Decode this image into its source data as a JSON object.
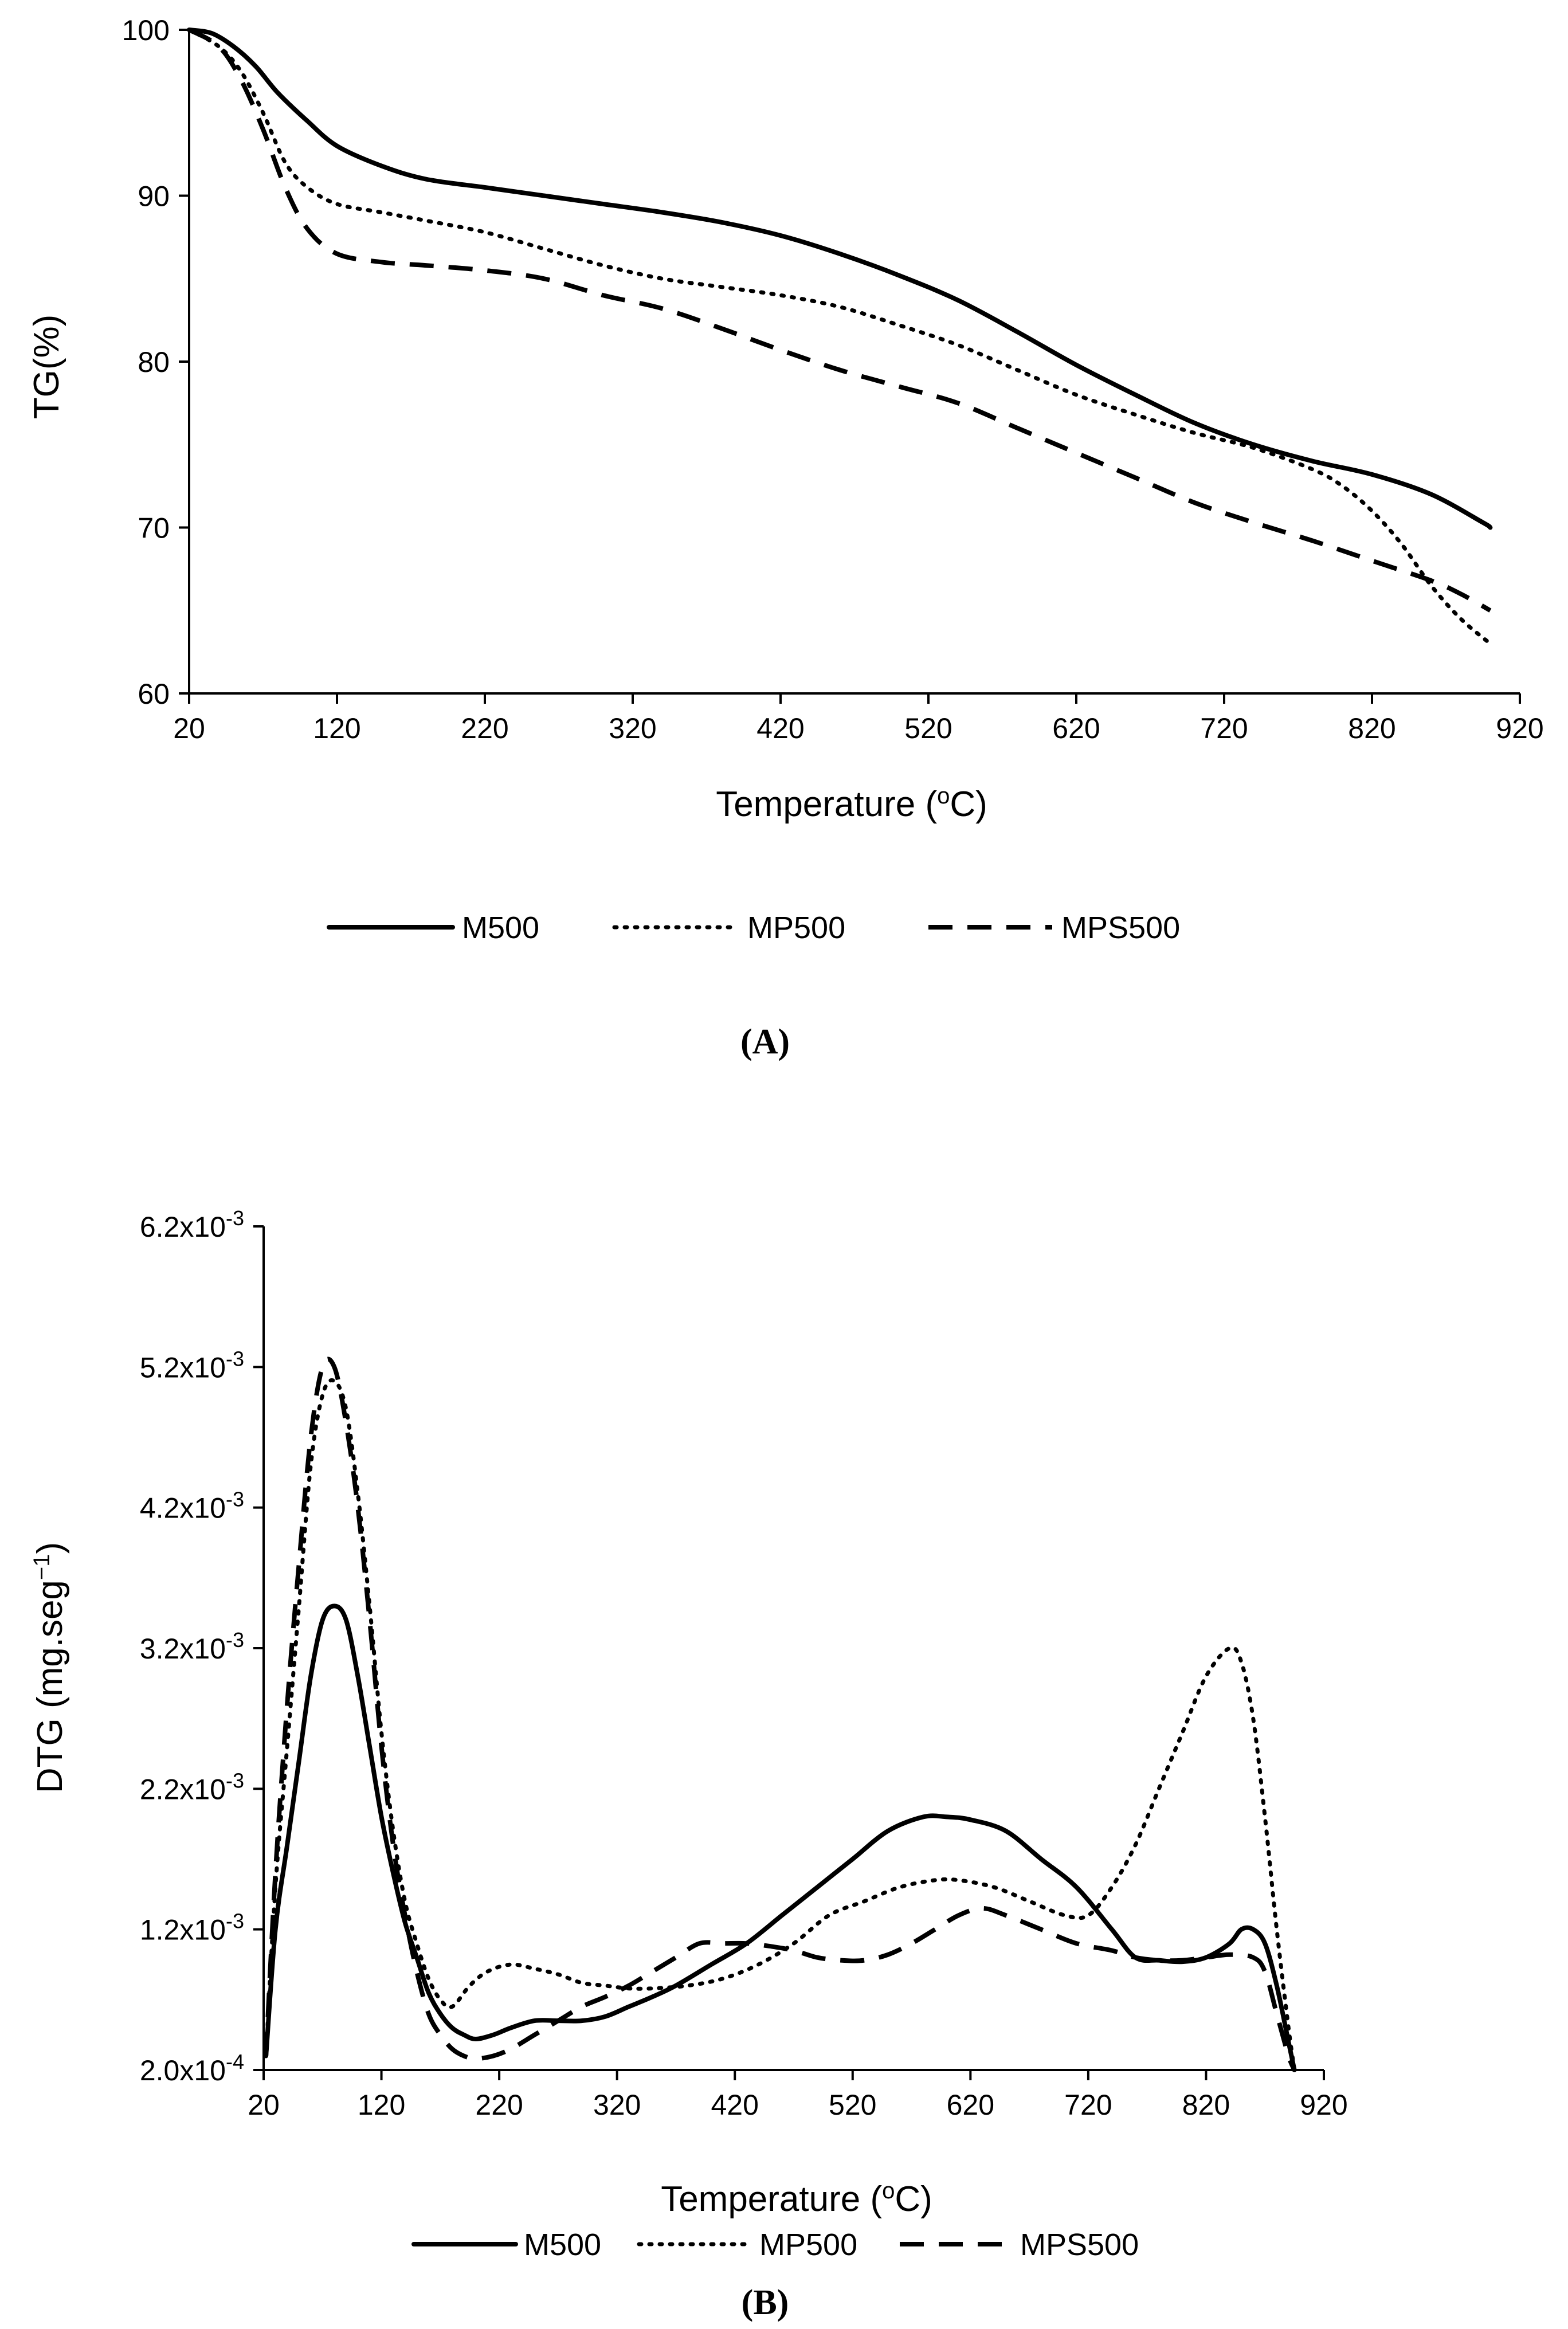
{
  "chart_data": [
    {
      "type": "line",
      "caption": "(A)",
      "title": "",
      "xlabel": "Temperature (",
      "xlabel_sup": "o",
      "xlabel_unit": "C)",
      "ylabel": "TG(%)",
      "xlim": [
        20,
        920
      ],
      "ylim": [
        60,
        100
      ],
      "xticks": [
        20,
        120,
        220,
        320,
        420,
        520,
        620,
        720,
        820,
        920
      ],
      "xtick_labels": [
        "20",
        "120",
        "220",
        "320",
        "420",
        "520",
        "620",
        "720",
        "820",
        "920"
      ],
      "yticks": [
        60,
        70,
        80,
        90,
        100
      ],
      "ytick_labels": [
        "60",
        "70",
        "80",
        "90",
        "100"
      ],
      "legend_position": "bottom",
      "series": [
        {
          "name": "M500",
          "style": "solid",
          "x": [
            20,
            35,
            50,
            65,
            80,
            100,
            120,
            150,
            180,
            220,
            260,
            300,
            340,
            380,
            420,
            460,
            500,
            540,
            580,
            620,
            660,
            700,
            740,
            780,
            820,
            860,
            895,
            900
          ],
          "y": [
            100,
            99.8,
            99.0,
            97.8,
            96.2,
            94.5,
            93.0,
            91.8,
            91.0,
            90.5,
            90.0,
            89.5,
            89.0,
            88.4,
            87.6,
            86.5,
            85.2,
            83.7,
            81.8,
            79.8,
            78.0,
            76.3,
            75.0,
            74.0,
            73.2,
            72.0,
            70.3,
            70.0
          ]
        },
        {
          "name": "MP500",
          "style": "dotted",
          "x": [
            20,
            40,
            55,
            70,
            85,
            100,
            120,
            150,
            180,
            220,
            260,
            300,
            340,
            380,
            420,
            460,
            500,
            540,
            580,
            620,
            660,
            700,
            740,
            780,
            800,
            820,
            840,
            860,
            880,
            900
          ],
          "y": [
            100,
            99.0,
            97.5,
            95.0,
            92.0,
            90.5,
            89.5,
            89.0,
            88.5,
            87.8,
            86.8,
            85.8,
            85.0,
            84.5,
            84.0,
            83.3,
            82.2,
            81.0,
            79.5,
            78.0,
            76.8,
            75.7,
            74.8,
            73.5,
            72.5,
            71.0,
            69.0,
            66.5,
            64.5,
            63.0
          ]
        },
        {
          "name": "MPS500",
          "style": "dashed",
          "x": [
            20,
            40,
            55,
            70,
            85,
            100,
            120,
            150,
            180,
            220,
            260,
            300,
            340,
            380,
            420,
            460,
            500,
            540,
            580,
            620,
            660,
            700,
            740,
            780,
            820,
            860,
            880,
            900
          ],
          "y": [
            100,
            99.0,
            97.0,
            94.0,
            90.5,
            88.0,
            86.5,
            86.0,
            85.8,
            85.5,
            85.0,
            84.0,
            83.2,
            82.0,
            80.7,
            79.5,
            78.5,
            77.5,
            76.0,
            74.5,
            73.0,
            71.5,
            70.3,
            69.2,
            68.0,
            66.8,
            66.0,
            65.0
          ]
        }
      ]
    },
    {
      "type": "line",
      "caption": "(B)",
      "title": "",
      "xlabel": "Temperature (",
      "xlabel_sup": "o",
      "xlabel_unit": "C)",
      "ylabel": "DTG (mg.seg",
      "ylabel_sup": "−1",
      "ylabel_unit": ")",
      "xlim": [
        20,
        920
      ],
      "ylim": [
        0.0002,
        0.0062
      ],
      "xticks": [
        20,
        120,
        220,
        320,
        420,
        520,
        620,
        720,
        820,
        920
      ],
      "xtick_labels": [
        "20",
        "120",
        "220",
        "320",
        "420",
        "520",
        "620",
        "720",
        "820",
        "920"
      ],
      "yticks": [
        0.0002,
        0.0012,
        0.0022,
        0.0032,
        0.0042,
        0.0052,
        0.0062
      ],
      "ytick_labels": [
        "2.0x10",
        "1.2x10",
        "2.2x10",
        "3.2x10",
        "4.2x10",
        "5.2x10",
        "6.2x10"
      ],
      "ytick_exponents": [
        "-4",
        "-3",
        "-3",
        "-3",
        "-3",
        "-3",
        "-3"
      ],
      "legend_position": "bottom",
      "series": [
        {
          "name": "M500",
          "style": "solid",
          "x": [
            22,
            30,
            40,
            50,
            60,
            70,
            80,
            90,
            100,
            110,
            120,
            130,
            140,
            150,
            160,
            170,
            180,
            190,
            200,
            215,
            230,
            250,
            270,
            290,
            310,
            330,
            350,
            370,
            400,
            430,
            460,
            490,
            520,
            550,
            580,
            600,
            620,
            650,
            680,
            710,
            740,
            760,
            780,
            800,
            820,
            840,
            850,
            860,
            870,
            880,
            890,
            895
          ],
          "y": [
            0.0003,
            0.0012,
            0.0018,
            0.0024,
            0.003,
            0.0034,
            0.0035,
            0.0034,
            0.003,
            0.0025,
            0.002,
            0.0016,
            0.00125,
            0.001,
            0.00075,
            0.0006,
            0.0005,
            0.00045,
            0.00042,
            0.00045,
            0.0005,
            0.00055,
            0.00055,
            0.00055,
            0.00058,
            0.00065,
            0.00072,
            0.0008,
            0.00095,
            0.0011,
            0.0013,
            0.0015,
            0.0017,
            0.0019,
            0.002,
            0.002,
            0.00198,
            0.0019,
            0.0017,
            0.0015,
            0.0012,
            0.001,
            0.00098,
            0.00097,
            0.001,
            0.0011,
            0.0012,
            0.0012,
            0.0011,
            0.0008,
            0.0004,
            0.0002
          ]
        },
        {
          "name": "MP500",
          "style": "dotted",
          "x": [
            22,
            30,
            40,
            50,
            60,
            70,
            80,
            90,
            100,
            110,
            120,
            130,
            140,
            150,
            160,
            170,
            180,
            195,
            210,
            230,
            250,
            270,
            290,
            310,
            330,
            350,
            380,
            410,
            440,
            470,
            500,
            530,
            560,
            590,
            610,
            640,
            670,
            700,
            720,
            740,
            760,
            780,
            800,
            820,
            840,
            850,
            860,
            870,
            880,
            890,
            895
          ],
          "y": [
            0.0003,
            0.0015,
            0.0025,
            0.0035,
            0.0045,
            0.005,
            0.0051,
            0.0049,
            0.0043,
            0.0035,
            0.0026,
            0.0019,
            0.0014,
            0.0011,
            0.00085,
            0.0007,
            0.00065,
            0.0008,
            0.0009,
            0.00095,
            0.00092,
            0.00088,
            0.00082,
            0.0008,
            0.00078,
            0.00078,
            0.0008,
            0.00085,
            0.00095,
            0.0011,
            0.0013,
            0.0014,
            0.0015,
            0.00155,
            0.00155,
            0.0015,
            0.0014,
            0.0013,
            0.0013,
            0.0015,
            0.0018,
            0.0022,
            0.0026,
            0.003,
            0.0032,
            0.0031,
            0.0027,
            0.002,
            0.0012,
            0.0005,
            0.0002
          ]
        },
        {
          "name": "MPS500",
          "style": "dashed",
          "x": [
            22,
            30,
            40,
            50,
            60,
            70,
            80,
            90,
            100,
            110,
            120,
            130,
            140,
            150,
            160,
            170,
            180,
            190,
            200,
            215,
            230,
            250,
            270,
            290,
            310,
            330,
            350,
            370,
            390,
            410,
            430,
            450,
            470,
            490,
            510,
            530,
            550,
            570,
            590,
            610,
            630,
            650,
            680,
            710,
            740,
            760,
            780,
            800,
            820,
            840,
            860,
            870,
            880,
            890,
            895
          ],
          "y": [
            0.0003,
            0.0016,
            0.0028,
            0.0038,
            0.0047,
            0.0052,
            0.0052,
            0.0048,
            0.0042,
            0.0034,
            0.0025,
            0.0018,
            0.0013,
            0.0009,
            0.0006,
            0.00045,
            0.00035,
            0.0003,
            0.00028,
            0.0003,
            0.00035,
            0.00045,
            0.00055,
            0.00065,
            0.00072,
            0.0008,
            0.0009,
            0.001,
            0.0011,
            0.0011,
            0.0011,
            0.00108,
            0.00105,
            0.001,
            0.00098,
            0.00098,
            0.00102,
            0.0011,
            0.0012,
            0.0013,
            0.00135,
            0.0013,
            0.0012,
            0.0011,
            0.00105,
            0.001,
            0.00098,
            0.00098,
            0.001,
            0.00102,
            0.001,
            0.0009,
            0.0006,
            0.0003,
            0.0002
          ]
        }
      ]
    }
  ]
}
